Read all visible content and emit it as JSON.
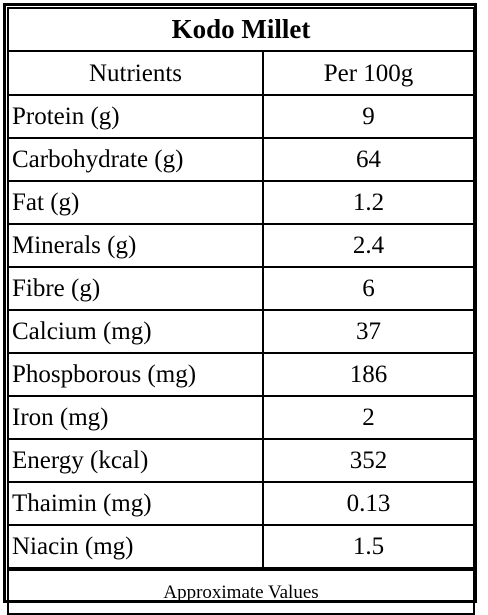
{
  "table": {
    "title": "Kodo Millet",
    "headers": {
      "nutrient": "Nutrients",
      "value": "Per 100g"
    },
    "rows": [
      {
        "nutrient": "Protein (g)",
        "value": "9"
      },
      {
        "nutrient": "Carbohydrate (g)",
        "value": "64"
      },
      {
        "nutrient": "Fat (g)",
        "value": "1.2"
      },
      {
        "nutrient": "Minerals (g)",
        "value": "2.4"
      },
      {
        "nutrient": "Fibre (g)",
        "value": "6"
      },
      {
        "nutrient": "Calcium (mg)",
        "value": "37"
      },
      {
        "nutrient": "Phospborous (mg)",
        "value": "186"
      },
      {
        "nutrient": "Iron (mg)",
        "value": "2"
      },
      {
        "nutrient": "Energy (kcal)",
        "value": "352"
      },
      {
        "nutrient": "Thaimin (mg)",
        "value": "0.13"
      },
      {
        "nutrient": "Niacin (mg)",
        "value": "1.5"
      }
    ],
    "footer": "Approximate Values"
  }
}
